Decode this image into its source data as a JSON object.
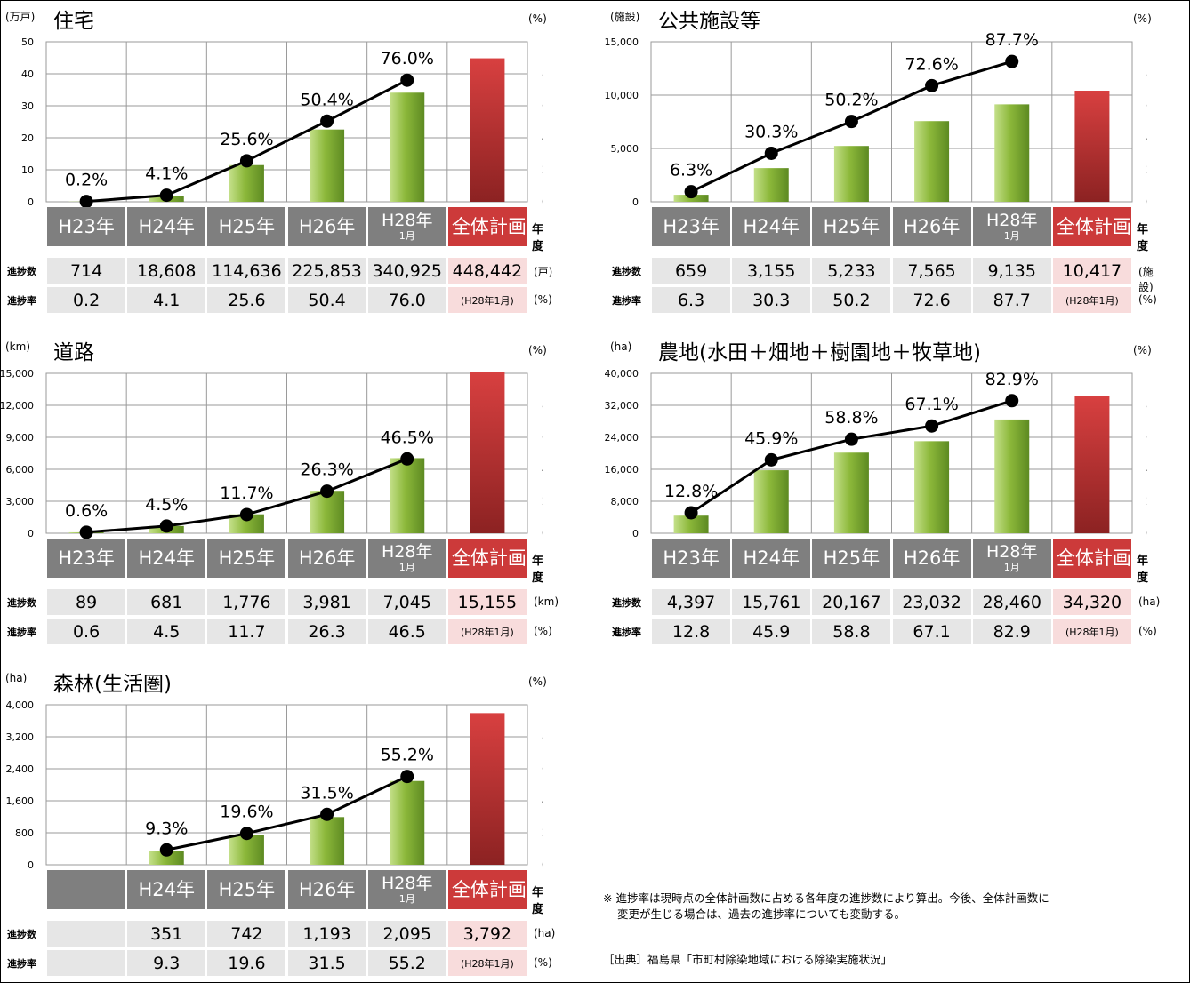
{
  "chart_data": [
    {
      "type": "bar",
      "title": "住宅",
      "unit_left": "(万戸)",
      "unit_right": "(%)",
      "yticks_left": [
        "0",
        "10",
        "20",
        "30",
        "40",
        "50"
      ],
      "yticks_right": [
        "0.0",
        "20.0",
        "40.0",
        "60.0",
        "80.0",
        "100.0"
      ],
      "ylim_left": [
        0,
        50
      ],
      "ylim_right": [
        0,
        100
      ],
      "categories": [
        "H23年",
        "H24年",
        "H25年",
        "H26年",
        "H28年",
        "全体計画数"
      ],
      "category_sub": [
        "",
        "",
        "",
        "",
        "1月",
        ""
      ],
      "series": [
        {
          "name": "進捗数",
          "values": [
            714,
            18608,
            114636,
            225853,
            340925,
            448442
          ]
        },
        {
          "name": "進捗率",
          "values": [
            0.2,
            4.1,
            25.6,
            50.4,
            76.0,
            null
          ]
        }
      ],
      "bar_values_plot": [
        0.0714,
        1.8608,
        11.4636,
        22.5853,
        34.0925,
        44.8442
      ],
      "point_labels": [
        "0.2%",
        "4.1%",
        "25.6%",
        "50.4%",
        "76.0%"
      ],
      "row_count": [
        "714",
        "18,608",
        "114,636",
        "225,853",
        "340,925",
        "448,442"
      ],
      "row_rate": [
        "0.2",
        "4.1",
        "25.6",
        "50.4",
        "76.0",
        "(H28年1月)"
      ],
      "row_count_unit": "(戸)",
      "row_rate_unit": "(%)",
      "row_count_label": "進捗数",
      "row_rate_label": "進捗率",
      "year_label": "年度"
    },
    {
      "type": "bar",
      "title": "公共施設等",
      "unit_left": "(施設)",
      "unit_right": "(%)",
      "yticks_left": [
        "0",
        "5,000",
        "10,000",
        "15,000"
      ],
      "yticks_right": [
        "0.0",
        "20.0",
        "40.0",
        "60.0",
        "80.0",
        "100.0"
      ],
      "ylim_left": [
        0,
        15000
      ],
      "ylim_right": [
        0,
        100
      ],
      "categories": [
        "H23年",
        "H24年",
        "H25年",
        "H26年",
        "H28年",
        "全体計画数"
      ],
      "category_sub": [
        "",
        "",
        "",
        "",
        "1月",
        ""
      ],
      "series": [
        {
          "name": "進捗数",
          "values": [
            659,
            3155,
            5233,
            7565,
            9135,
            10417
          ]
        },
        {
          "name": "進捗率",
          "values": [
            6.3,
            30.3,
            50.2,
            72.6,
            87.7,
            null
          ]
        }
      ],
      "bar_values_plot": [
        659,
        3155,
        5233,
        7565,
        9135,
        10417
      ],
      "point_labels": [
        "6.3%",
        "30.3%",
        "50.2%",
        "72.6%",
        "87.7%"
      ],
      "row_count": [
        "659",
        "3,155",
        "5,233",
        "7,565",
        "9,135",
        "10,417"
      ],
      "row_rate": [
        "6.3",
        "30.3",
        "50.2",
        "72.6",
        "87.7",
        "(H28年1月)"
      ],
      "row_count_unit": "(施設)",
      "row_rate_unit": "(%)",
      "row_count_label": "進捗数",
      "row_rate_label": "進捗率",
      "year_label": "年度"
    },
    {
      "type": "bar",
      "title": "道路",
      "unit_left": "(km)",
      "unit_right": "(%)",
      "yticks_left": [
        "0",
        "3,000",
        "6,000",
        "9,000",
        "12,000",
        "15,000"
      ],
      "yticks_right": [
        "0.0",
        "20.0",
        "40.0",
        "60.0",
        "80.0",
        "100.0"
      ],
      "ylim_left": [
        0,
        15000
      ],
      "ylim_right": [
        0,
        100
      ],
      "categories": [
        "H23年",
        "H24年",
        "H25年",
        "H26年",
        "H28年",
        "全体計画数"
      ],
      "category_sub": [
        "",
        "",
        "",
        "",
        "1月",
        ""
      ],
      "series": [
        {
          "name": "進捗数",
          "values": [
            89,
            681,
            1776,
            3981,
            7045,
            15155
          ]
        },
        {
          "name": "進捗率",
          "values": [
            0.6,
            4.5,
            11.7,
            26.3,
            46.5,
            null
          ]
        }
      ],
      "bar_values_plot": [
        89,
        681,
        1776,
        3981,
        7045,
        15155
      ],
      "point_labels": [
        "0.6%",
        "4.5%",
        "11.7%",
        "26.3%",
        "46.5%"
      ],
      "row_count": [
        "89",
        "681",
        "1,776",
        "3,981",
        "7,045",
        "15,155"
      ],
      "row_rate": [
        "0.6",
        "4.5",
        "11.7",
        "26.3",
        "46.5",
        "(H28年1月)"
      ],
      "row_count_unit": "(km)",
      "row_rate_unit": "(%)",
      "row_count_label": "進捗数",
      "row_rate_label": "進捗率",
      "year_label": "年度"
    },
    {
      "type": "bar",
      "title": "農地(水田＋畑地＋樹園地＋牧草地)",
      "unit_left": "(ha)",
      "unit_right": "(%)",
      "yticks_left": [
        "0",
        "8,000",
        "16,000",
        "24,000",
        "32,000",
        "40,000"
      ],
      "yticks_right": [
        "0.0",
        "20.0",
        "40.0",
        "60.0",
        "80.0",
        "100.0"
      ],
      "ylim_left": [
        0,
        40000
      ],
      "ylim_right": [
        0,
        100
      ],
      "categories": [
        "H23年",
        "H24年",
        "H25年",
        "H26年",
        "H28年",
        "全体計画数"
      ],
      "category_sub": [
        "",
        "",
        "",
        "",
        "1月",
        ""
      ],
      "series": [
        {
          "name": "進捗数",
          "values": [
            4397,
            15761,
            20167,
            23032,
            28460,
            34320
          ]
        },
        {
          "name": "進捗率",
          "values": [
            12.8,
            45.9,
            58.8,
            67.1,
            82.9,
            null
          ]
        }
      ],
      "bar_values_plot": [
        4397,
        15761,
        20167,
        23032,
        28460,
        34320
      ],
      "point_labels": [
        "12.8%",
        "45.9%",
        "58.8%",
        "67.1%",
        "82.9%"
      ],
      "row_count": [
        "4,397",
        "15,761",
        "20,167",
        "23,032",
        "28,460",
        "34,320"
      ],
      "row_rate": [
        "12.8",
        "45.9",
        "58.8",
        "67.1",
        "82.9",
        "(H28年1月)"
      ],
      "row_count_unit": "(ha)",
      "row_rate_unit": "(%)",
      "row_count_label": "進捗数",
      "row_rate_label": "進捗率",
      "year_label": "年度"
    },
    {
      "type": "bar",
      "title": "森林(生活圏)",
      "unit_left": "(ha)",
      "unit_right": "(%)",
      "yticks_left": [
        "0",
        "800",
        "1,600",
        "2,400",
        "3,200",
        "4,000"
      ],
      "yticks_right": [
        "0.0",
        "20.0",
        "40.0",
        "60.0",
        "80.0",
        "100.0"
      ],
      "ylim_left": [
        0,
        4000
      ],
      "ylim_right": [
        0,
        100
      ],
      "categories": [
        "",
        "H24年",
        "H25年",
        "H26年",
        "H28年",
        "全体計画数"
      ],
      "category_sub": [
        "",
        "",
        "",
        "",
        "1月",
        ""
      ],
      "series": [
        {
          "name": "進捗数",
          "values": [
            null,
            351,
            742,
            1193,
            2095,
            3792
          ]
        },
        {
          "name": "進捗率",
          "values": [
            null,
            9.3,
            19.6,
            31.5,
            55.2,
            null
          ]
        }
      ],
      "bar_values_plot": [
        null,
        351,
        742,
        1193,
        2095,
        3792
      ],
      "point_labels": [
        "",
        "9.3%",
        "19.6%",
        "31.5%",
        "55.2%"
      ],
      "row_count": [
        "",
        "351",
        "742",
        "1,193",
        "2,095",
        "3,792"
      ],
      "row_rate": [
        "",
        "9.3",
        "19.6",
        "31.5",
        "55.2",
        "(H28年1月)"
      ],
      "row_count_unit": "(ha)",
      "row_rate_unit": "(%)",
      "row_count_label": "進捗数",
      "row_rate_label": "進捗率",
      "year_label": "年度"
    }
  ],
  "colors": {
    "bar": "#8cb83a",
    "bar_light": "#c4e08a",
    "total_bar": "#c83232",
    "line": "#000000",
    "header_gray": "#7f7f7f",
    "header_total": "#cc3a3a",
    "cell_gray": "#e6e6e6",
    "cell_total": "#f8dcdc"
  },
  "notes": {
    "note1": "※ 進捗率は現時点の全体計画数に占める各年度の進捗数により算出。今後、全体計画数に",
    "note2": "変更が生じる場合は、過去の進捗率についても変動する。",
    "source": "［出典］福島県「市町村除染地域における除染実施状況」"
  }
}
